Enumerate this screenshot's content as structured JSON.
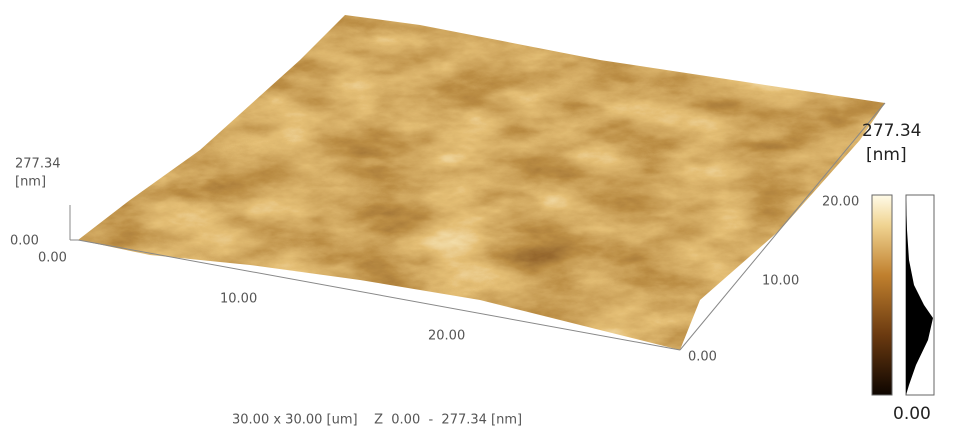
{
  "z_axis": {
    "max_label": "277.34",
    "unit": "[nm]",
    "min_label": "0.00"
  },
  "x_axis": {
    "ticks": [
      "0.00",
      "10.00",
      "20.00"
    ]
  },
  "y_axis": {
    "ticks": [
      "0.00",
      "10.00",
      "20.00"
    ]
  },
  "colorbar": {
    "max_label": "277.34",
    "unit": "[nm]",
    "min_label": "0.00"
  },
  "caption": "30.00 x 30.00 [um]    Z  0.00  -  277.34 [nm]"
}
